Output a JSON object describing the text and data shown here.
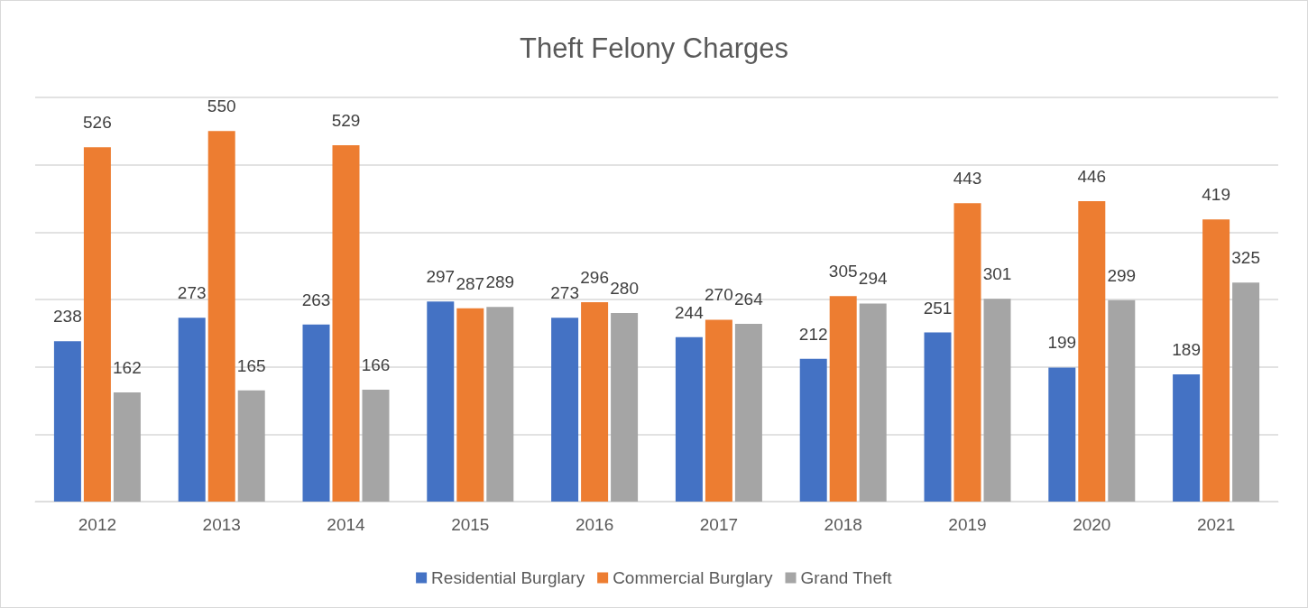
{
  "chart_data": {
    "type": "bar",
    "title": "Theft Felony Charges",
    "categories": [
      "2012",
      "2013",
      "2014",
      "2015",
      "2016",
      "2017",
      "2018",
      "2019",
      "2020",
      "2021"
    ],
    "series": [
      {
        "name": "Residential Burglary",
        "color": "#4472c4",
        "values": [
          238,
          273,
          263,
          297,
          273,
          244,
          212,
          251,
          199,
          189
        ]
      },
      {
        "name": "Commercial Burglary",
        "color": "#ed7d31",
        "values": [
          526,
          550,
          529,
          287,
          296,
          270,
          305,
          443,
          446,
          419
        ]
      },
      {
        "name": "Grand Theft",
        "color": "#a5a5a5",
        "values": [
          162,
          165,
          166,
          289,
          280,
          264,
          294,
          301,
          299,
          325
        ]
      }
    ],
    "ylim": [
      0,
      600
    ],
    "yticks": [
      {
        "value": 0,
        "label": null
      },
      {
        "value": 100,
        "label": null
      },
      {
        "value": 200,
        "label": null
      },
      {
        "value": 300,
        "label": null
      },
      {
        "value": 400,
        "label": null
      },
      {
        "value": 500,
        "label": null
      },
      {
        "value": 600,
        "label": null
      }
    ],
    "tick_labels": "x",
    "grid": "y",
    "data_labels": true,
    "legend": "bottom"
  }
}
